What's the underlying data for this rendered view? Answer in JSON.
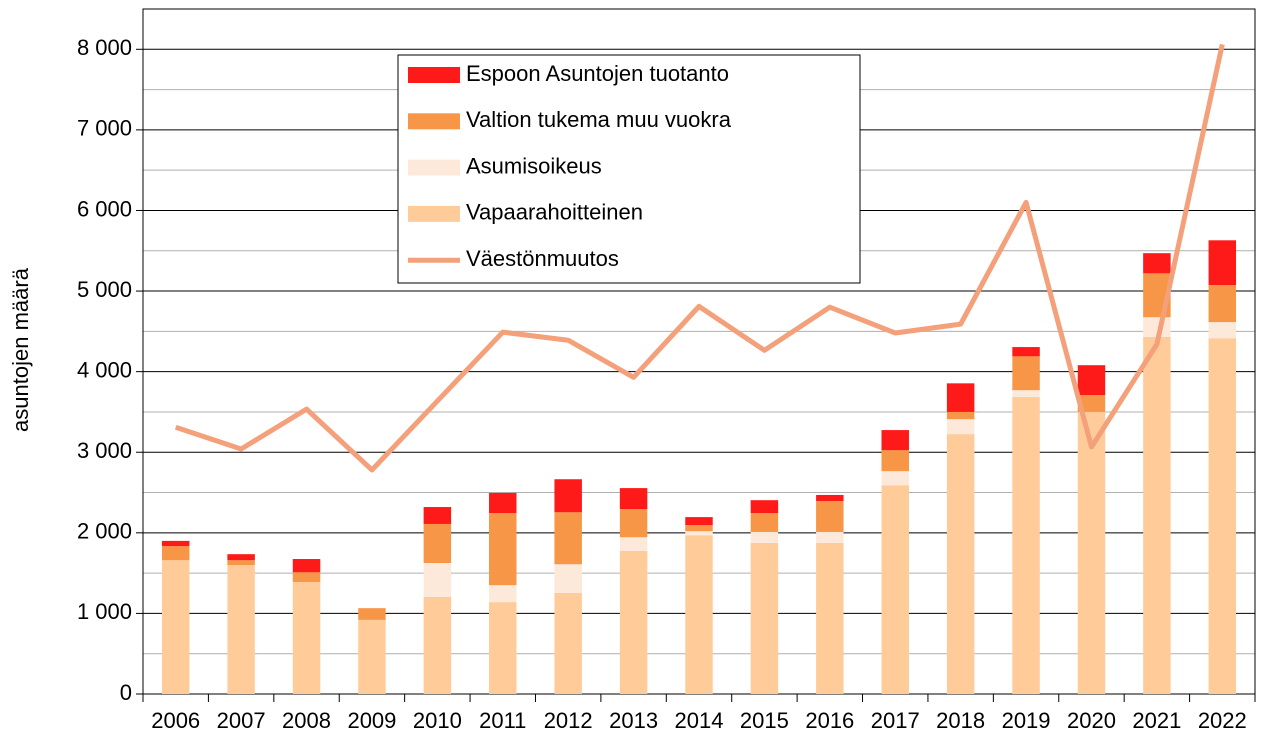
{
  "chart_data": {
    "type": "bar",
    "stacked": true,
    "y_label": "asuntojen määrä",
    "categories": [
      "2006",
      "2007",
      "2008",
      "2009",
      "2010",
      "2011",
      "2012",
      "2013",
      "2014",
      "2015",
      "2016",
      "2017",
      "2018",
      "2019",
      "2020",
      "2021",
      "2022"
    ],
    "series": [
      {
        "name": "Espoon Asuntojen tuotanto",
        "type": "bar",
        "color": "#ff1a1a",
        "values": [
          65,
          75,
          165,
          0,
          210,
          250,
          410,
          260,
          100,
          160,
          75,
          250,
          355,
          115,
          370,
          250,
          555
        ]
      },
      {
        "name": "Valtion tukema muu vuokra",
        "type": "bar",
        "color": "#f79646",
        "values": [
          175,
          60,
          120,
          145,
          485,
          895,
          645,
          350,
          75,
          235,
          385,
          260,
          90,
          420,
          210,
          545,
          460
        ]
      },
      {
        "name": "Asumisoikeus",
        "type": "bar",
        "color": "#fde9d9",
        "values": [
          0,
          0,
          0,
          0,
          420,
          210,
          355,
          170,
          50,
          135,
          135,
          175,
          185,
          85,
          0,
          245,
          200
        ]
      },
      {
        "name": "Vapaarahoitteinen",
        "type": "bar",
        "color": "#ffcc99",
        "values": [
          1660,
          1600,
          1390,
          920,
          1205,
          1140,
          1255,
          1775,
          1970,
          1875,
          1875,
          2590,
          3225,
          3685,
          3500,
          4430,
          4415
        ]
      },
      {
        "name": "Väestönmuutos",
        "type": "line",
        "color": "#f4a07a",
        "values": [
          3310,
          3040,
          3535,
          2780,
          3635,
          4490,
          4390,
          3930,
          4810,
          4265,
          4800,
          4480,
          4590,
          6100,
          3065,
          4340,
          8060
        ]
      }
    ],
    "ylim": [
      0,
      8500
    ],
    "yticks": [
      0,
      {
        "value": 1000,
        "label": "1 000"
      },
      {
        "value": 2000,
        "label": "2 000"
      },
      {
        "value": 3000,
        "label": "3 000"
      },
      {
        "value": 4000,
        "label": "4 000"
      },
      {
        "value": 5000,
        "label": "5 000"
      },
      {
        "value": 6000,
        "label": "6 000"
      },
      {
        "value": 7000,
        "label": "7 000"
      },
      {
        "value": 8000,
        "label": "8 000"
      }
    ],
    "minor_gridlines": [
      500,
      1500,
      2500,
      3500,
      4500,
      5500,
      6500,
      7500,
      8500
    ],
    "grid": true,
    "legend": "top"
  }
}
